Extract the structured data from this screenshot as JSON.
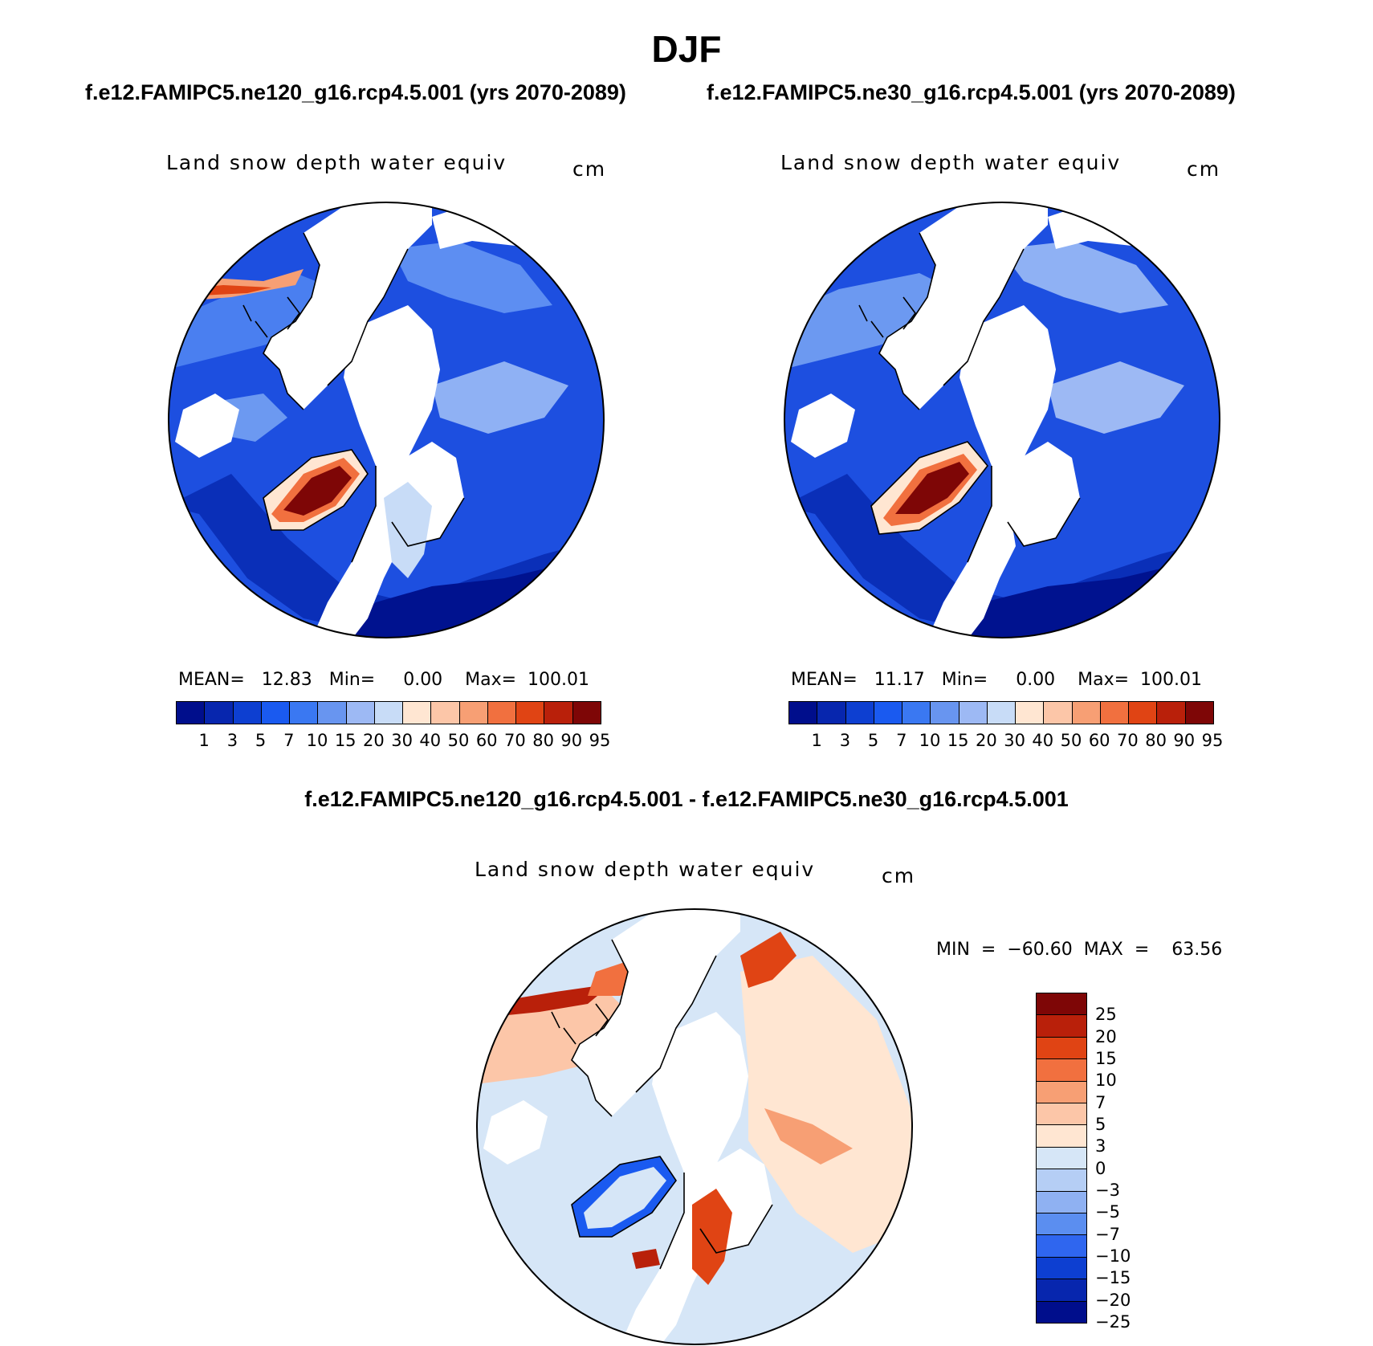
{
  "page": {
    "title": "DJF",
    "left_subtitle": "f.e12.FAMIPC5.ne120_g16.rcp4.5.001 (yrs 2070-2089)",
    "right_subtitle": "f.e12.FAMIPC5.ne30_g16.rcp4.5.001 (yrs 2070-2089)",
    "diff_subtitle": "f.e12.FAMIPC5.ne120_g16.rcp4.5.001 - f.e12.FAMIPC5.ne30_g16.rcp4.5.001"
  },
  "panels": {
    "left": {
      "variable": "Land snow depth water equiv",
      "unit": "cm",
      "stats": "MEAN=   12.83   Min=     0.00    Max=  100.01"
    },
    "right": {
      "variable": "Land snow depth water equiv",
      "unit": "cm",
      "stats": "MEAN=   11.17   Min=     0.00    Max=  100.01"
    },
    "diff": {
      "variable": "Land snow depth water equiv",
      "unit": "cm",
      "stats": "MIN  =  −60.60  MAX  =    63.56"
    }
  },
  "colorbar_abs": {
    "colors": [
      "#000e8c",
      "#0726ae",
      "#0d3fd1",
      "#1a5af0",
      "#3a78f2",
      "#6895f0",
      "#9db9f4",
      "#c8dcf7",
      "#ffe6d2",
      "#fcc6a8",
      "#f79f74",
      "#f1703f",
      "#e04414",
      "#b9200a",
      "#7e0606"
    ],
    "ticks": [
      "1",
      "3",
      "5",
      "7",
      "10",
      "15",
      "20",
      "30",
      "40",
      "50",
      "60",
      "70",
      "80",
      "90",
      "95"
    ]
  },
  "colorbar_diff": {
    "colors": [
      "#7e0606",
      "#b9200a",
      "#e04414",
      "#f1703f",
      "#f79f74",
      "#fcc6a8",
      "#ffe6d2",
      "#d6e6f7",
      "#b5cef5",
      "#8fb1f2",
      "#5b8ef0",
      "#2f66ef",
      "#0d3fd1",
      "#0726ae",
      "#000e8c"
    ],
    "ticks": [
      "25",
      "20",
      "15",
      "10",
      "7",
      "5",
      "3",
      "0",
      "−3",
      "−5",
      "−7",
      "−10",
      "−15",
      "−20",
      "−25"
    ]
  }
}
